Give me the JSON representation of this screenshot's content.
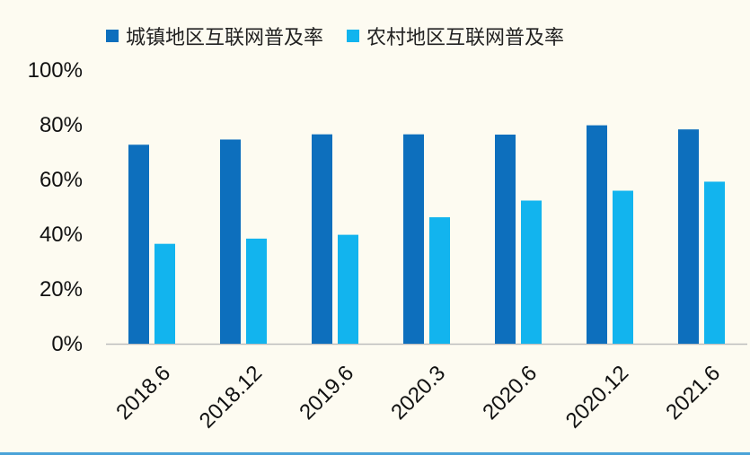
{
  "chart_data": {
    "type": "bar",
    "categories": [
      "2018.6",
      "2018.12",
      "2019.6",
      "2020.3",
      "2020.6",
      "2020.12",
      "2021.6"
    ],
    "series": [
      {
        "name": "城镇地区互联网普及率",
        "values": [
          72.7,
          74.6,
          76.5,
          76.5,
          76.4,
          79.8,
          78.3
        ],
        "color": "#0d6fbd"
      },
      {
        "name": "农村地区互联网普及率",
        "values": [
          36.5,
          38.4,
          39.8,
          46.2,
          52.3,
          55.9,
          59.2
        ],
        "color": "#12b4ee"
      }
    ],
    "y_ticks": [
      "0%",
      "20%",
      "40%",
      "60%",
      "80%",
      "100%"
    ],
    "ylim": [
      0,
      100
    ],
    "grid": false,
    "legend": "top"
  }
}
